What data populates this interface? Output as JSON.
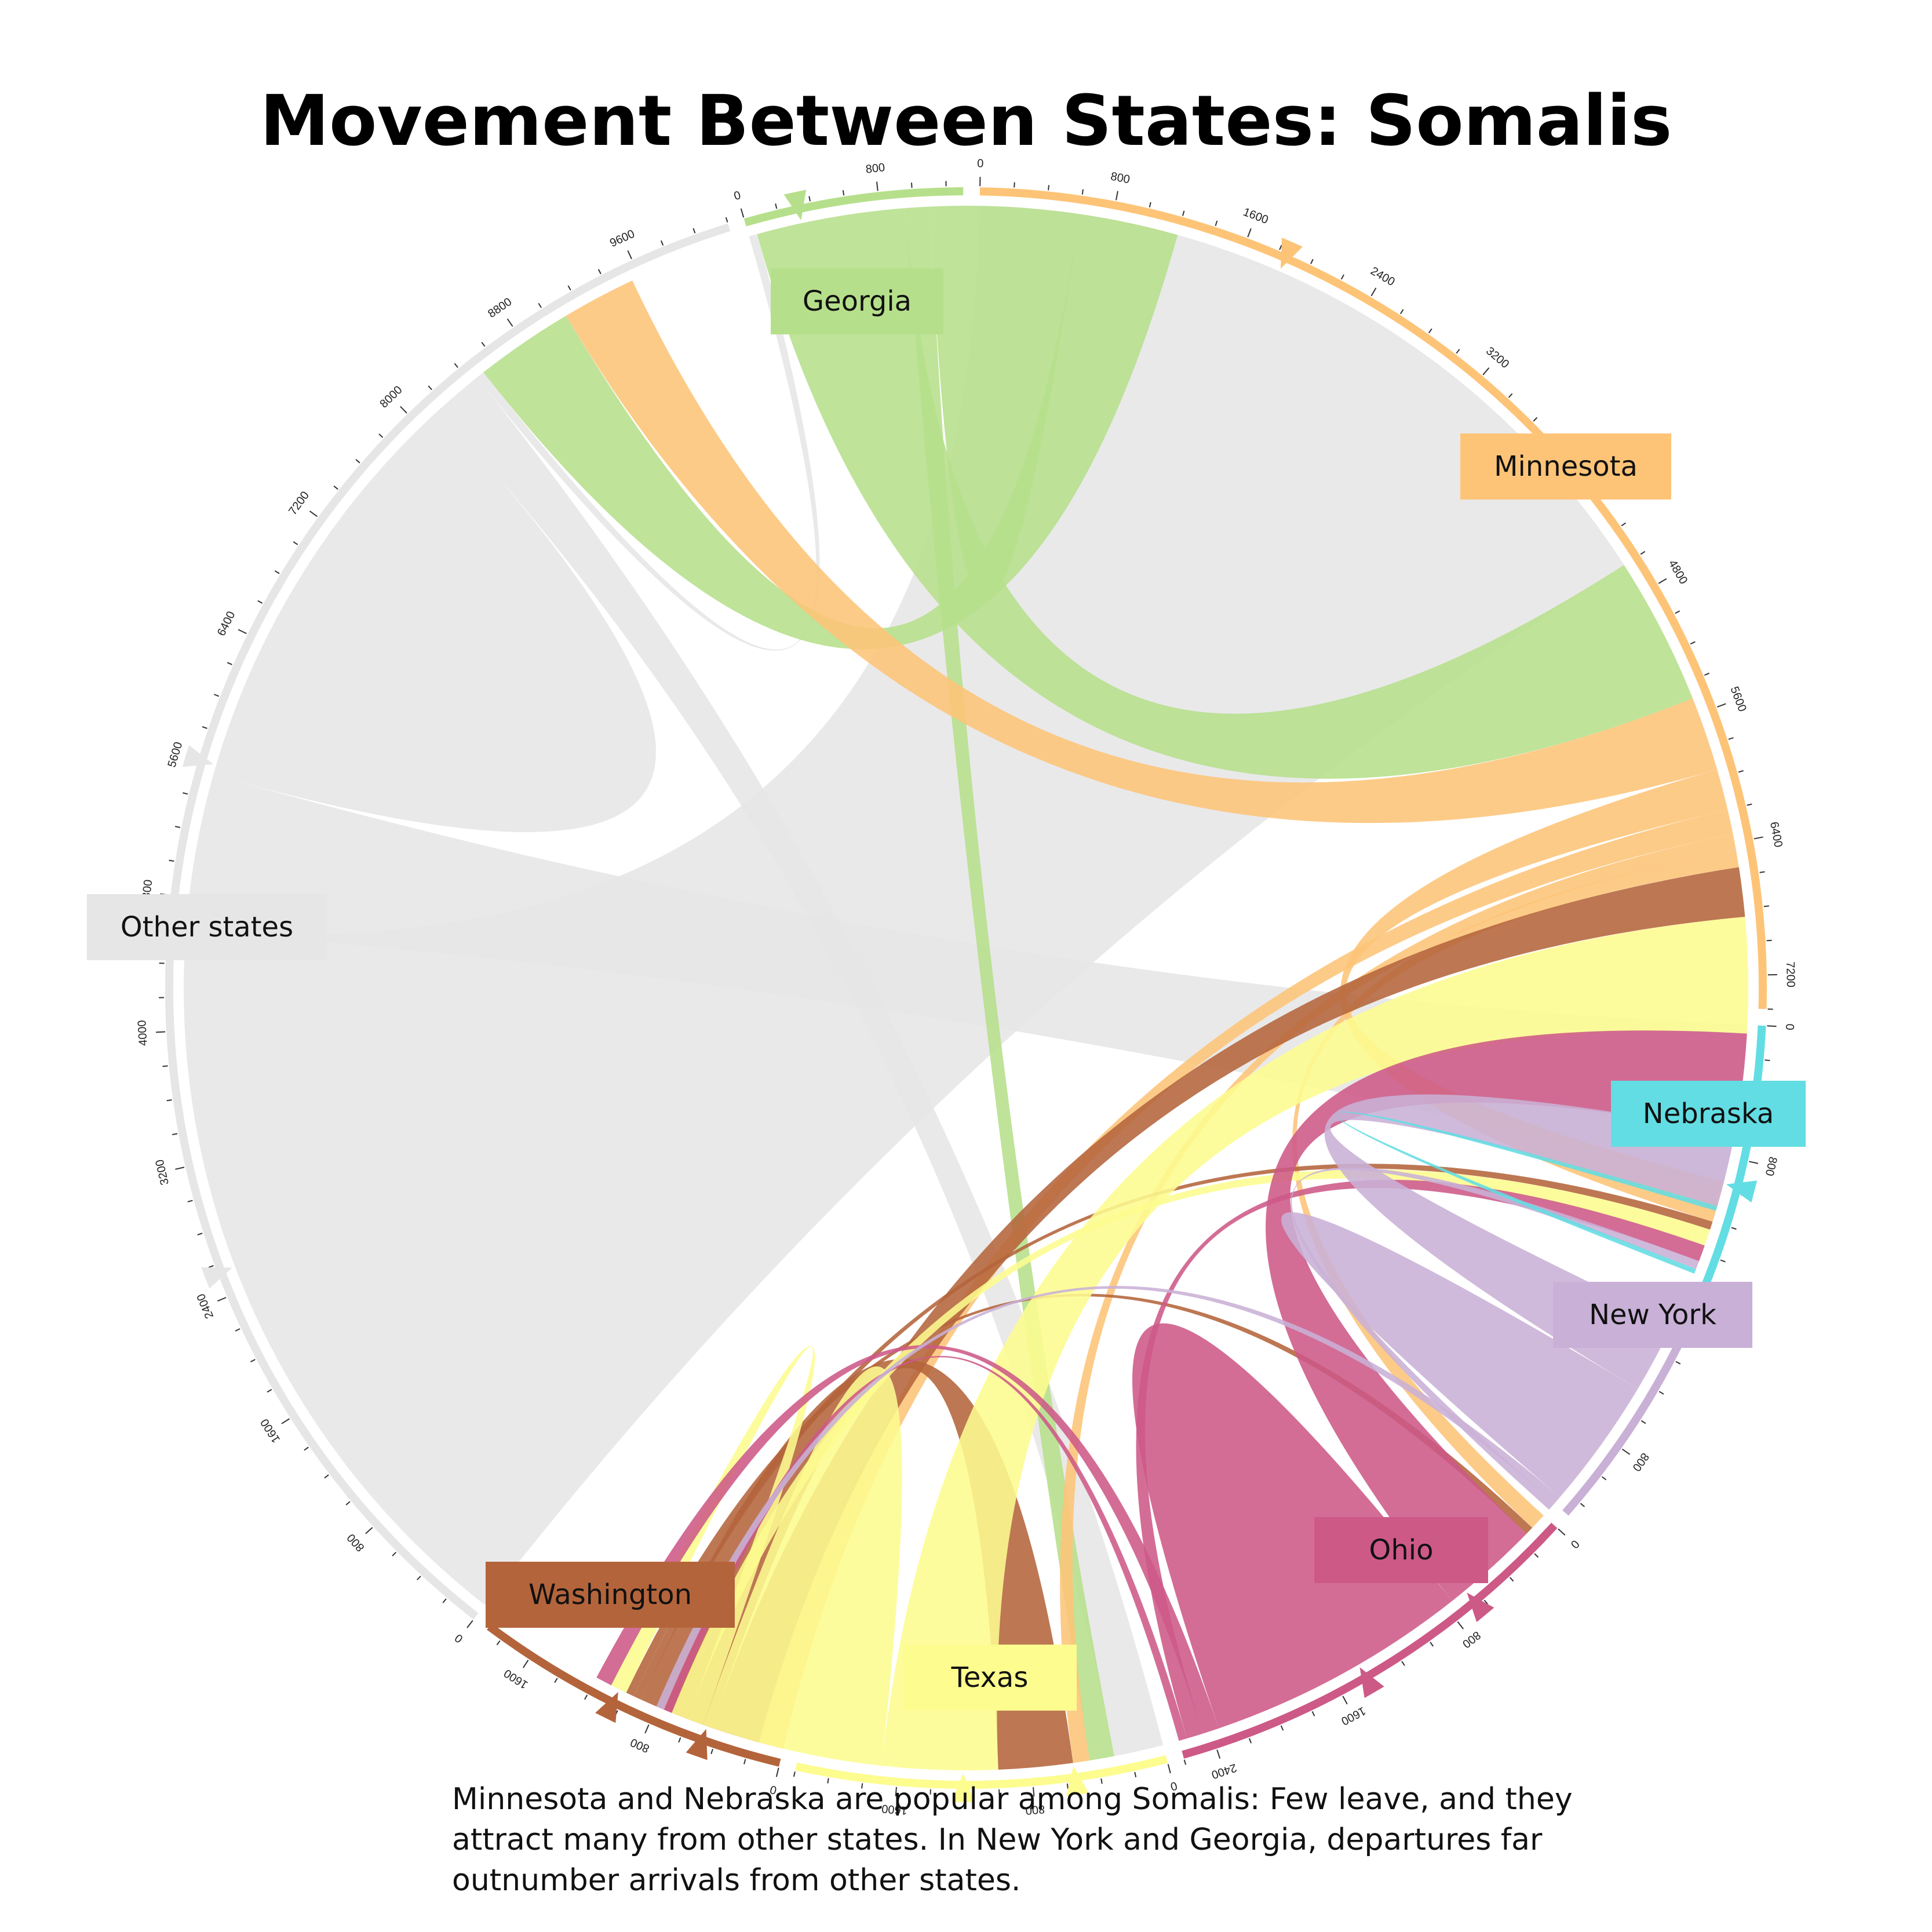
{
  "title": "Movement Between States: Somalis",
  "caption": "Minnesota and Nebraska are popular among Somalis: Few leave, and they attract many from other states. In New York and Georgia, departures far outnumber arrivals from other states.",
  "chart_data": {
    "type": "chord",
    "tick_step": 200,
    "label_step": 800,
    "groups": [
      {
        "name": "Minnesota",
        "total": 7400,
        "color": "#fdc477"
      },
      {
        "name": "Nebraska",
        "total": 1750,
        "color": "#62dde3"
      },
      {
        "name": "New York",
        "total": 1300,
        "color": "#c9b0d6"
      },
      {
        "name": "Ohio",
        "total": 2600,
        "color": "#cd5987"
      },
      {
        "name": "Texas",
        "total": 2200,
        "color": "#fdfc8f"
      },
      {
        "name": "Washington",
        "total": 1900,
        "color": "#b4643b"
      },
      {
        "name": "Other states",
        "total": 10200,
        "color": "#e6e6e6"
      },
      {
        "name": "Georgia",
        "total": 1300,
        "color": "#b6df8b"
      }
    ],
    "flows": [
      {
        "from": "Other states",
        "to": "Minnesota",
        "value": 4600
      },
      {
        "from": "Other states",
        "to": "Nebraska",
        "value": 950
      },
      {
        "from": "Other states",
        "to": "Other states",
        "value": 1300
      },
      {
        "from": "Other states",
        "to": "Texas",
        "value": 300
      },
      {
        "from": "Other states",
        "to": "Georgia",
        "value": 50
      },
      {
        "from": "Georgia",
        "to": "Minnesota",
        "value": 900
      },
      {
        "from": "Georgia",
        "to": "Texas",
        "value": 150
      },
      {
        "from": "Georgia",
        "to": "Georgia",
        "value": 450
      },
      {
        "from": "Georgia",
        "to": "Other states",
        "value": 600
      },
      {
        "from": "Minnesota",
        "to": "Other states",
        "value": 450
      },
      {
        "from": "Minnesota",
        "to": "Nebraska",
        "value": 250
      },
      {
        "from": "Minnesota",
        "to": "Washington",
        "value": 150
      },
      {
        "from": "Minnesota",
        "to": "Texas",
        "value": 100
      },
      {
        "from": "Minnesota",
        "to": "Ohio",
        "value": 100
      },
      {
        "from": "Washington",
        "to": "Minnesota",
        "value": 300
      },
      {
        "from": "Washington",
        "to": "Texas",
        "value": 450
      },
      {
        "from": "Washington",
        "to": "Nebraska",
        "value": 50
      },
      {
        "from": "Washington",
        "to": "Ohio",
        "value": 50
      },
      {
        "from": "Texas",
        "to": "Minnesota",
        "value": 700
      },
      {
        "from": "Texas",
        "to": "Texas",
        "value": 550
      },
      {
        "from": "Texas",
        "to": "Washington",
        "value": 100
      },
      {
        "from": "Texas",
        "to": "Nebraska",
        "value": 100
      },
      {
        "from": "Ohio",
        "to": "Minnesota",
        "value": 600
      },
      {
        "from": "Ohio",
        "to": "Ohio",
        "value": 800
      },
      {
        "from": "Ohio",
        "to": "Washington",
        "value": 100
      },
      {
        "from": "Ohio",
        "to": "Nebraska",
        "value": 100
      },
      {
        "from": "Ohio",
        "to": "Texas",
        "value": 50
      },
      {
        "from": "New York",
        "to": "Minnesota",
        "value": 450
      },
      {
        "from": "New York",
        "to": "New York",
        "value": 400
      },
      {
        "from": "New York",
        "to": "Texas",
        "value": 50
      },
      {
        "from": "New York",
        "to": "Nebraska",
        "value": 50
      },
      {
        "from": "Nebraska",
        "to": "Minnesota",
        "value": 30
      }
    ]
  }
}
